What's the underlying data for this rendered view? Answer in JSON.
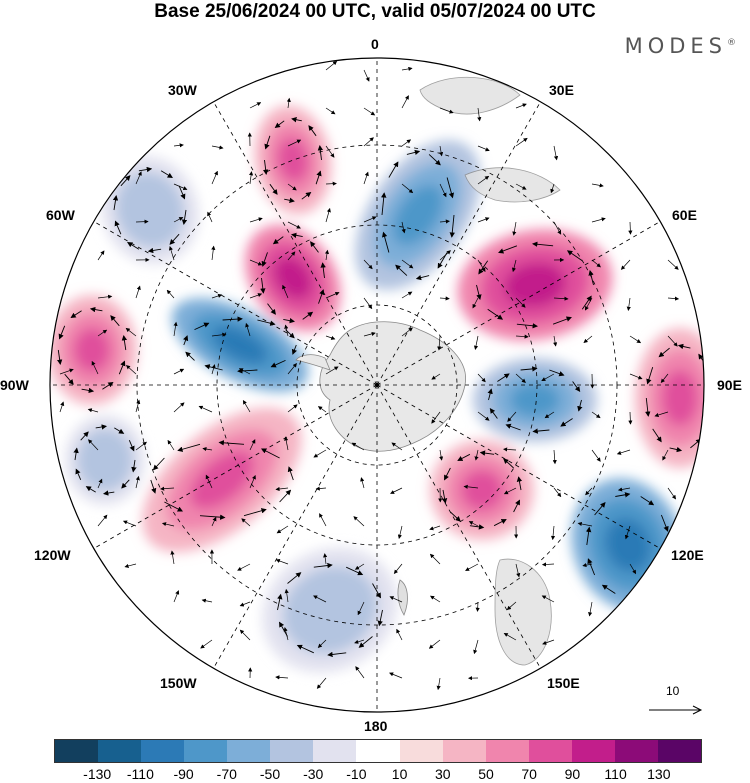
{
  "title": "Base 25/06/2024 00 UTC, valid 05/07/2024 00 UTC",
  "brand": "MODES",
  "brand_mark": "®",
  "meridian_labels": {
    "m0": "0",
    "m30e": "30E",
    "m60e": "60E",
    "m90e": "90E",
    "m120e": "120E",
    "m150e": "150E",
    "m180": "180",
    "m150w": "150W",
    "m120w": "120W",
    "m90w": "90W",
    "m60w": "60W",
    "m30w": "30W"
  },
  "vector_reference": "10",
  "colorbar": {
    "ticks": [
      "-130",
      "-110",
      "-90",
      "-70",
      "-50",
      "-30",
      "-10",
      "10",
      "30",
      "50",
      "70",
      "90",
      "110",
      "130"
    ],
    "colors": [
      "#123f5e",
      "#17608f",
      "#2c7ab6",
      "#4e97c9",
      "#7daed8",
      "#b3c4e0",
      "#e2e2ef",
      "#ffffff",
      "#f8dcdc",
      "#f5b5c4",
      "#f085ad",
      "#e04f9c",
      "#c21e8b",
      "#8c0b78",
      "#5a0566"
    ]
  },
  "anomaly_centers": [
    {
      "sign": "positive",
      "level": "strong",
      "near": "30W"
    },
    {
      "sign": "positive",
      "level": "moderate",
      "near": "45W"
    },
    {
      "sign": "negative",
      "level": "moderate",
      "near": "5E"
    },
    {
      "sign": "negative",
      "level": "weak",
      "near": "45W mid-latitude"
    },
    {
      "sign": "negative",
      "level": "strong",
      "near": "70W"
    },
    {
      "sign": "positive",
      "level": "moderate",
      "near": "90W"
    },
    {
      "sign": "positive",
      "level": "strong",
      "near": "50E"
    },
    {
      "sign": "positive",
      "level": "moderate",
      "near": "90E"
    },
    {
      "sign": "negative",
      "level": "moderate",
      "near": "90E"
    },
    {
      "sign": "positive",
      "level": "moderate",
      "near": "140E"
    },
    {
      "sign": "negative",
      "level": "strong",
      "near": "120E"
    },
    {
      "sign": "positive",
      "level": "moderate",
      "near": "115W"
    },
    {
      "sign": "negative",
      "level": "weak",
      "near": "100W"
    },
    {
      "sign": "negative",
      "level": "weak",
      "near": "150W"
    }
  ]
}
